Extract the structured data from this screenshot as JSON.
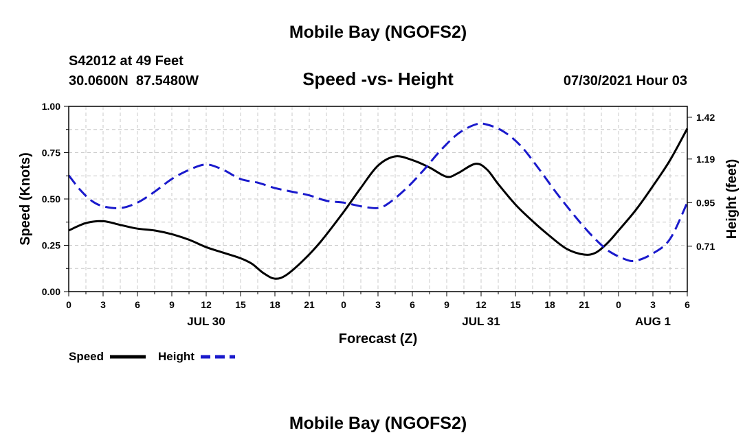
{
  "chart_data": {
    "type": "line",
    "title": "Mobile Bay (NGOFS2)",
    "footer_title": "Mobile Bay (NGOFS2)",
    "subtitle": "Speed -vs- Height",
    "station": "S42012 at 49 Feet",
    "coords": "30.0600N  87.5480W",
    "datetime": "07/30/2021 Hour 03",
    "xlabel": "Forecast (Z)",
    "ylabel": "Speed (Knots)",
    "y2label": "Height (feet)",
    "xlim": [
      0,
      54
    ],
    "ylim": [
      0,
      1
    ],
    "y2lim": [
      0.46,
      1.48
    ],
    "grid": true,
    "x_ticks": [
      {
        "x": 0,
        "label": "0"
      },
      {
        "x": 3,
        "label": "3"
      },
      {
        "x": 6,
        "label": "6"
      },
      {
        "x": 9,
        "label": "9"
      },
      {
        "x": 12,
        "label": "12"
      },
      {
        "x": 15,
        "label": "15"
      },
      {
        "x": 18,
        "label": "18"
      },
      {
        "x": 21,
        "label": "21"
      },
      {
        "x": 24,
        "label": "0"
      },
      {
        "x": 27,
        "label": "3"
      },
      {
        "x": 30,
        "label": "6"
      },
      {
        "x": 33,
        "label": "9"
      },
      {
        "x": 36,
        "label": "12"
      },
      {
        "x": 39,
        "label": "15"
      },
      {
        "x": 42,
        "label": "18"
      },
      {
        "x": 45,
        "label": "21"
      },
      {
        "x": 48,
        "label": "0"
      },
      {
        "x": 51,
        "label": "3"
      },
      {
        "x": 54,
        "label": "6"
      }
    ],
    "day_labels": [
      {
        "x": 12,
        "label": "JUL 30"
      },
      {
        "x": 36,
        "label": "JUL 31"
      },
      {
        "x": 51,
        "label": "AUG 1"
      }
    ],
    "y_ticks": [
      {
        "v": 0.0,
        "label": "0.00"
      },
      {
        "v": 0.25,
        "label": "0.25"
      },
      {
        "v": 0.5,
        "label": "0.50"
      },
      {
        "v": 0.75,
        "label": "0.75"
      },
      {
        "v": 1.0,
        "label": "1.00"
      }
    ],
    "y2_ticks": [
      {
        "v": 0.71,
        "label": "0.71"
      },
      {
        "v": 0.95,
        "label": "0.95"
      },
      {
        "v": 1.19,
        "label": "1.19"
      },
      {
        "v": 1.42,
        "label": "1.42"
      }
    ],
    "legend_placement": "bottom-left",
    "series": [
      {
        "name": "Speed",
        "axis": "left",
        "color": "#000000",
        "dash": "solid",
        "points": [
          [
            0,
            0.33
          ],
          [
            1.5,
            0.37
          ],
          [
            3,
            0.38
          ],
          [
            4.5,
            0.36
          ],
          [
            6,
            0.34
          ],
          [
            7.5,
            0.33
          ],
          [
            9,
            0.31
          ],
          [
            10.5,
            0.28
          ],
          [
            12,
            0.24
          ],
          [
            13.5,
            0.21
          ],
          [
            15,
            0.18
          ],
          [
            16,
            0.15
          ],
          [
            17,
            0.1
          ],
          [
            18,
            0.07
          ],
          [
            19,
            0.09
          ],
          [
            20.5,
            0.17
          ],
          [
            22,
            0.27
          ],
          [
            24,
            0.43
          ],
          [
            25.5,
            0.56
          ],
          [
            27,
            0.68
          ],
          [
            28.5,
            0.73
          ],
          [
            30,
            0.71
          ],
          [
            31.5,
            0.67
          ],
          [
            33,
            0.62
          ],
          [
            34,
            0.64
          ],
          [
            35.5,
            0.69
          ],
          [
            36.5,
            0.66
          ],
          [
            37.5,
            0.58
          ],
          [
            39,
            0.47
          ],
          [
            40.5,
            0.38
          ],
          [
            42,
            0.3
          ],
          [
            43.5,
            0.23
          ],
          [
            45,
            0.2
          ],
          [
            46,
            0.21
          ],
          [
            47,
            0.26
          ],
          [
            48,
            0.33
          ],
          [
            49.5,
            0.44
          ],
          [
            51,
            0.57
          ],
          [
            52.5,
            0.71
          ],
          [
            54,
            0.88
          ]
        ]
      },
      {
        "name": "Height",
        "axis": "right",
        "color": "#1a1acc",
        "dash": "dashed",
        "points": [
          [
            0,
            1.1
          ],
          [
            1,
            1.02
          ],
          [
            2,
            0.96
          ],
          [
            3,
            0.93
          ],
          [
            4.5,
            0.92
          ],
          [
            6,
            0.95
          ],
          [
            7.5,
            1.01
          ],
          [
            9,
            1.08
          ],
          [
            10.5,
            1.13
          ],
          [
            12,
            1.16
          ],
          [
            13.5,
            1.13
          ],
          [
            15,
            1.08
          ],
          [
            16.5,
            1.06
          ],
          [
            18,
            1.03
          ],
          [
            19.5,
            1.01
          ],
          [
            21,
            0.99
          ],
          [
            22.5,
            0.96
          ],
          [
            24,
            0.95
          ],
          [
            25.5,
            0.93
          ],
          [
            27,
            0.92
          ],
          [
            28,
            0.95
          ],
          [
            29.5,
            1.03
          ],
          [
            31,
            1.13
          ],
          [
            32.5,
            1.24
          ],
          [
            34,
            1.33
          ],
          [
            35.5,
            1.38
          ],
          [
            36.5,
            1.38
          ],
          [
            38,
            1.34
          ],
          [
            39.5,
            1.26
          ],
          [
            41,
            1.14
          ],
          [
            42.5,
            1.01
          ],
          [
            44,
            0.89
          ],
          [
            45.5,
            0.78
          ],
          [
            47,
            0.69
          ],
          [
            48.5,
            0.64
          ],
          [
            49.5,
            0.63
          ],
          [
            51,
            0.67
          ],
          [
            52.5,
            0.75
          ],
          [
            54,
            0.95
          ]
        ]
      }
    ]
  }
}
